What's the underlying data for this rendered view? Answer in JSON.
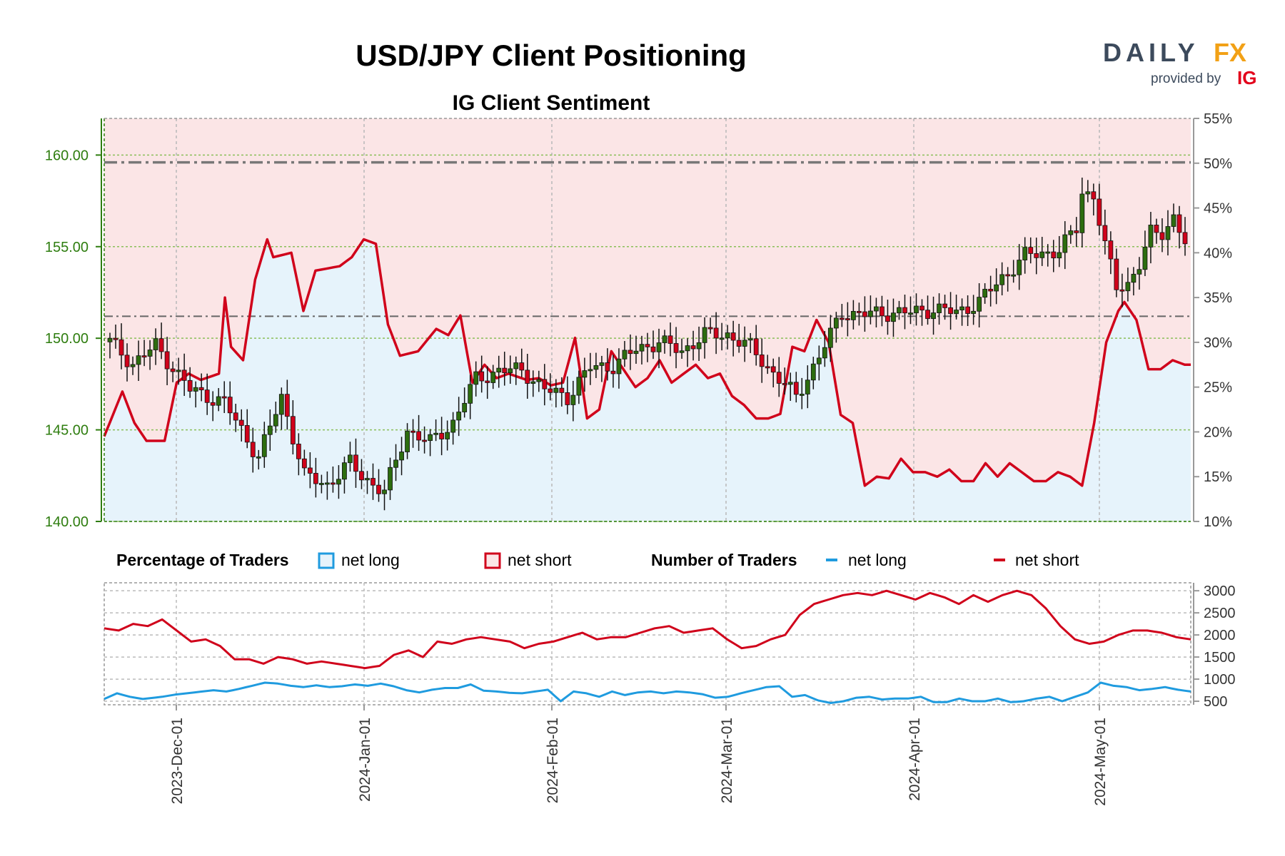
{
  "header": {
    "title": "USD/JPY Client Positioning",
    "subtitle": "IG Client Sentiment",
    "logo_main_left": "DAILY",
    "logo_main_right": "FX",
    "logo_sub": "provided by",
    "logo_ig": "IG"
  },
  "colors": {
    "net_long": "#1f9bdf",
    "net_short": "#d0021b",
    "long_fill": "#e6f3fb",
    "short_fill": "#fbe5e6",
    "candle_up": "#2d6d0f",
    "candle_down": "#d0021b",
    "axis_green": "#2e7d0f"
  },
  "legend": {
    "pct_title": "Percentage of Traders",
    "pct_long": "net long",
    "pct_short": "net short",
    "num_title": "Number of Traders",
    "num_long": "net long",
    "num_short": "net short"
  },
  "chart_data": [
    {
      "type": "candlestick",
      "name": "USD/JPY",
      "ylim": [
        140,
        162
      ],
      "y_ticks": [
        "140.00",
        "145.00",
        "150.00",
        "155.00",
        "160.00"
      ],
      "y2lim": [
        10,
        55
      ],
      "y2_ticks": [
        "10%",
        "15%",
        "20%",
        "25%",
        "30%",
        "35%",
        "40%",
        "45%",
        "50%",
        "55%"
      ],
      "x_labels": [
        "2023-Dec-01",
        "2024-Jan-01",
        "2024-Feb-01",
        "2024-Mar-01",
        "2024-Apr-01",
        "2024-May-01"
      ],
      "reference_lines": [
        159.6,
        151.2
      ],
      "price_anchors": [
        [
          0,
          149.8
        ],
        [
          4,
          148.6
        ],
        [
          8,
          149.6
        ],
        [
          14,
          147.2
        ],
        [
          20,
          146.5
        ],
        [
          26,
          143.5
        ],
        [
          30,
          146.8
        ],
        [
          34,
          142.5
        ],
        [
          38,
          142.0
        ],
        [
          42,
          143.2
        ],
        [
          44,
          142.5
        ],
        [
          48,
          141.6
        ],
        [
          52,
          145.0
        ],
        [
          56,
          144.3
        ],
        [
          60,
          145.4
        ],
        [
          64,
          147.8
        ],
        [
          68,
          148.2
        ],
        [
          72,
          148.3
        ],
        [
          76,
          147.2
        ],
        [
          80,
          146.8
        ],
        [
          84,
          148.4
        ],
        [
          88,
          148.5
        ],
        [
          92,
          149.4
        ],
        [
          96,
          149.8
        ],
        [
          100,
          149.3
        ],
        [
          104,
          150.2
        ],
        [
          108,
          150.2
        ],
        [
          112,
          149.5
        ],
        [
          116,
          148.1
        ],
        [
          120,
          146.8
        ],
        [
          124,
          149.0
        ],
        [
          128,
          151.4
        ],
        [
          132,
          151.3
        ],
        [
          136,
          151.4
        ],
        [
          140,
          151.4
        ],
        [
          144,
          151.6
        ],
        [
          148,
          151.4
        ],
        [
          152,
          152.0
        ],
        [
          156,
          153.3
        ],
        [
          160,
          154.5
        ],
        [
          164,
          154.7
        ],
        [
          166,
          154.8
        ],
        [
          169,
          156.0
        ],
        [
          170,
          158.0
        ],
        [
          172,
          157.8
        ],
        [
          174,
          155.0
        ],
        [
          176,
          152.8
        ],
        [
          178,
          153.0
        ],
        [
          180,
          154.0
        ],
        [
          182,
          155.7
        ],
        [
          184,
          155.8
        ],
        [
          186,
          156.6
        ],
        [
          188,
          155.2
        ]
      ],
      "net_long_pct_anchors": [
        [
          0,
          19.5
        ],
        [
          3,
          24.5
        ],
        [
          5,
          21.0
        ],
        [
          7,
          19.0
        ],
        [
          10,
          19.0
        ],
        [
          12,
          25.5
        ],
        [
          14,
          26.5
        ],
        [
          16,
          25.8
        ],
        [
          19,
          26.5
        ],
        [
          20,
          35.0
        ],
        [
          21,
          29.5
        ],
        [
          23,
          28.0
        ],
        [
          25,
          37.0
        ],
        [
          27,
          41.5
        ],
        [
          28,
          39.5
        ],
        [
          31,
          40.0
        ],
        [
          33,
          33.5
        ],
        [
          35,
          38.0
        ],
        [
          39,
          38.5
        ],
        [
          41,
          39.5
        ],
        [
          43,
          41.5
        ],
        [
          45,
          41.0
        ],
        [
          47,
          32.0
        ],
        [
          49,
          28.5
        ],
        [
          52,
          29.0
        ],
        [
          55,
          31.5
        ],
        [
          57,
          30.8
        ],
        [
          59,
          33.0
        ],
        [
          61,
          25.5
        ],
        [
          63,
          27.5
        ],
        [
          65,
          26.0
        ],
        [
          67,
          26.5
        ],
        [
          70,
          25.8
        ],
        [
          72,
          26.0
        ],
        [
          74,
          25.2
        ],
        [
          76,
          25.5
        ],
        [
          78,
          30.5
        ],
        [
          80,
          21.5
        ],
        [
          82,
          22.5
        ],
        [
          84,
          29.0
        ],
        [
          86,
          27.0
        ],
        [
          88,
          25.0
        ],
        [
          90,
          26.0
        ],
        [
          92,
          28.0
        ],
        [
          94,
          25.5
        ],
        [
          96,
          26.5
        ],
        [
          98,
          27.5
        ],
        [
          100,
          26.0
        ],
        [
          102,
          26.5
        ],
        [
          104,
          24.0
        ],
        [
          106,
          23.0
        ],
        [
          108,
          21.5
        ],
        [
          110,
          21.5
        ],
        [
          112,
          22.0
        ],
        [
          114,
          29.5
        ],
        [
          116,
          29.0
        ],
        [
          118,
          32.5
        ],
        [
          120,
          30.0
        ],
        [
          122,
          21.9
        ],
        [
          124,
          21.0
        ],
        [
          126,
          14.0
        ],
        [
          128,
          15.0
        ],
        [
          130,
          14.8
        ],
        [
          132,
          17.0
        ],
        [
          134,
          15.5
        ],
        [
          136,
          15.5
        ],
        [
          138,
          15.0
        ],
        [
          140,
          15.8
        ],
        [
          142,
          14.5
        ],
        [
          144,
          14.5
        ],
        [
          146,
          16.5
        ],
        [
          148,
          15.0
        ],
        [
          150,
          16.5
        ],
        [
          152,
          15.5
        ],
        [
          154,
          14.5
        ],
        [
          156,
          14.5
        ],
        [
          158,
          15.5
        ],
        [
          160,
          15.0
        ],
        [
          162,
          14.0
        ],
        [
          164,
          21.0
        ],
        [
          166,
          30.0
        ],
        [
          168,
          33.5
        ],
        [
          169,
          34.5
        ],
        [
          171,
          32.5
        ],
        [
          173,
          27.0
        ],
        [
          175,
          27.0
        ],
        [
          177,
          28.0
        ],
        [
          179,
          27.5
        ],
        [
          180,
          27.5
        ]
      ],
      "net_long_pct_last": 27.5
    },
    {
      "type": "line",
      "name": "Number of Traders",
      "ylim": [
        420,
        3180
      ],
      "y_ticks": [
        "500",
        "1000",
        "1500",
        "2000",
        "2500",
        "3000"
      ],
      "series": [
        {
          "name": "net long",
          "anchors": [
            [
              0,
              550
            ],
            [
              2,
              680
            ],
            [
              4,
              600
            ],
            [
              6,
              550
            ],
            [
              9,
              600
            ],
            [
              11,
              650
            ],
            [
              14,
              700
            ],
            [
              17,
              750
            ],
            [
              19,
              720
            ],
            [
              21,
              780
            ],
            [
              23,
              850
            ],
            [
              25,
              920
            ],
            [
              27,
              900
            ],
            [
              29,
              850
            ],
            [
              31,
              820
            ],
            [
              33,
              860
            ],
            [
              35,
              820
            ],
            [
              37,
              840
            ],
            [
              39,
              880
            ],
            [
              41,
              850
            ],
            [
              43,
              900
            ],
            [
              45,
              840
            ],
            [
              47,
              750
            ],
            [
              49,
              700
            ],
            [
              51,
              760
            ],
            [
              53,
              800
            ],
            [
              55,
              800
            ],
            [
              57,
              880
            ],
            [
              59,
              740
            ],
            [
              61,
              720
            ],
            [
              63,
              690
            ],
            [
              65,
              680
            ],
            [
              67,
              720
            ],
            [
              69,
              760
            ],
            [
              71,
              500
            ],
            [
              73,
              720
            ],
            [
              75,
              680
            ],
            [
              77,
              600
            ],
            [
              79,
              720
            ],
            [
              81,
              640
            ],
            [
              83,
              700
            ],
            [
              85,
              720
            ],
            [
              87,
              680
            ],
            [
              89,
              720
            ],
            [
              91,
              700
            ],
            [
              93,
              660
            ],
            [
              95,
              580
            ],
            [
              97,
              600
            ],
            [
              99,
              680
            ],
            [
              101,
              750
            ],
            [
              103,
              820
            ],
            [
              105,
              840
            ],
            [
              107,
              600
            ],
            [
              109,
              640
            ],
            [
              111,
              520
            ],
            [
              113,
              460
            ],
            [
              115,
              500
            ],
            [
              117,
              580
            ],
            [
              119,
              600
            ],
            [
              121,
              540
            ],
            [
              123,
              560
            ],
            [
              125,
              560
            ],
            [
              127,
              600
            ],
            [
              129,
              480
            ],
            [
              131,
              480
            ],
            [
              133,
              560
            ],
            [
              135,
              500
            ],
            [
              137,
              500
            ],
            [
              139,
              560
            ],
            [
              141,
              480
            ],
            [
              143,
              500
            ],
            [
              145,
              560
            ],
            [
              147,
              600
            ],
            [
              149,
              500
            ],
            [
              151,
              600
            ],
            [
              153,
              700
            ],
            [
              155,
              920
            ],
            [
              157,
              850
            ],
            [
              159,
              820
            ],
            [
              161,
              750
            ],
            [
              163,
              780
            ],
            [
              165,
              820
            ],
            [
              167,
              760
            ],
            [
              169,
              720
            ]
          ]
        },
        {
          "name": "net short",
          "anchors": [
            [
              0,
              2150
            ],
            [
              2,
              2100
            ],
            [
              4,
              2250
            ],
            [
              6,
              2200
            ],
            [
              8,
              2350
            ],
            [
              10,
              2100
            ],
            [
              12,
              1850
            ],
            [
              14,
              1900
            ],
            [
              16,
              1750
            ],
            [
              18,
              1450
            ],
            [
              20,
              1450
            ],
            [
              22,
              1350
            ],
            [
              24,
              1500
            ],
            [
              26,
              1450
            ],
            [
              28,
              1350
            ],
            [
              30,
              1400
            ],
            [
              32,
              1350
            ],
            [
              34,
              1300
            ],
            [
              36,
              1250
            ],
            [
              38,
              1300
            ],
            [
              40,
              1550
            ],
            [
              42,
              1650
            ],
            [
              44,
              1500
            ],
            [
              46,
              1850
            ],
            [
              48,
              1800
            ],
            [
              50,
              1900
            ],
            [
              52,
              1950
            ],
            [
              54,
              1900
            ],
            [
              56,
              1850
            ],
            [
              58,
              1700
            ],
            [
              60,
              1800
            ],
            [
              62,
              1850
            ],
            [
              64,
              1950
            ],
            [
              66,
              2050
            ],
            [
              68,
              1900
            ],
            [
              70,
              1950
            ],
            [
              72,
              1950
            ],
            [
              74,
              2050
            ],
            [
              76,
              2150
            ],
            [
              78,
              2200
            ],
            [
              80,
              2050
            ],
            [
              82,
              2100
            ],
            [
              84,
              2150
            ],
            [
              86,
              1900
            ],
            [
              88,
              1700
            ],
            [
              90,
              1750
            ],
            [
              92,
              1900
            ],
            [
              94,
              2000
            ],
            [
              96,
              2450
            ],
            [
              98,
              2700
            ],
            [
              100,
              2800
            ],
            [
              102,
              2900
            ],
            [
              104,
              2950
            ],
            [
              106,
              2900
            ],
            [
              108,
              3000
            ],
            [
              110,
              2900
            ],
            [
              112,
              2800
            ],
            [
              114,
              2950
            ],
            [
              116,
              2850
            ],
            [
              118,
              2700
            ],
            [
              120,
              2900
            ],
            [
              122,
              2750
            ],
            [
              124,
              2900
            ],
            [
              126,
              3000
            ],
            [
              128,
              2900
            ],
            [
              130,
              2600
            ],
            [
              132,
              2200
            ],
            [
              134,
              1900
            ],
            [
              136,
              1800
            ],
            [
              138,
              1850
            ],
            [
              140,
              2000
            ],
            [
              142,
              2100
            ],
            [
              144,
              2100
            ],
            [
              146,
              2050
            ],
            [
              148,
              1950
            ],
            [
              150,
              1900
            ]
          ]
        }
      ]
    }
  ]
}
